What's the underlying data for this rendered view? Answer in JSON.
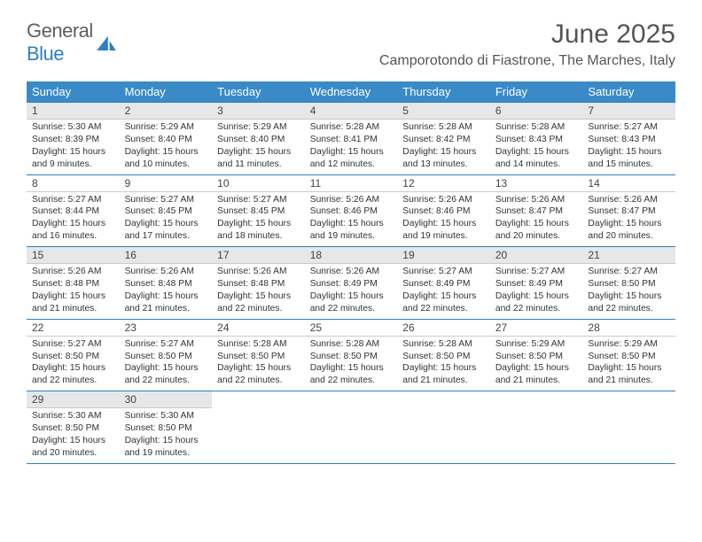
{
  "brand": {
    "word1": "General",
    "word2": "Blue"
  },
  "title": "June 2025",
  "location": "Camporotondo di Fiastrone, The Marches, Italy",
  "colors": {
    "header_bg": "#3a8ac8",
    "border": "#2f7fc1",
    "shade": "#e6e7e8",
    "text": "#333333",
    "logo_gray": "#5e5e5e",
    "logo_blue": "#2f7fc1"
  },
  "weekdays": [
    "Sunday",
    "Monday",
    "Tuesday",
    "Wednesday",
    "Thursday",
    "Friday",
    "Saturday"
  ],
  "weeks": [
    [
      {
        "n": "1",
        "shaded": true,
        "sr": "Sunrise: 5:30 AM",
        "ss": "Sunset: 8:39 PM",
        "d1": "Daylight: 15 hours",
        "d2": "and 9 minutes."
      },
      {
        "n": "2",
        "shaded": true,
        "sr": "Sunrise: 5:29 AM",
        "ss": "Sunset: 8:40 PM",
        "d1": "Daylight: 15 hours",
        "d2": "and 10 minutes."
      },
      {
        "n": "3",
        "shaded": true,
        "sr": "Sunrise: 5:29 AM",
        "ss": "Sunset: 8:40 PM",
        "d1": "Daylight: 15 hours",
        "d2": "and 11 minutes."
      },
      {
        "n": "4",
        "shaded": true,
        "sr": "Sunrise: 5:28 AM",
        "ss": "Sunset: 8:41 PM",
        "d1": "Daylight: 15 hours",
        "d2": "and 12 minutes."
      },
      {
        "n": "5",
        "shaded": true,
        "sr": "Sunrise: 5:28 AM",
        "ss": "Sunset: 8:42 PM",
        "d1": "Daylight: 15 hours",
        "d2": "and 13 minutes."
      },
      {
        "n": "6",
        "shaded": true,
        "sr": "Sunrise: 5:28 AM",
        "ss": "Sunset: 8:43 PM",
        "d1": "Daylight: 15 hours",
        "d2": "and 14 minutes."
      },
      {
        "n": "7",
        "shaded": true,
        "sr": "Sunrise: 5:27 AM",
        "ss": "Sunset: 8:43 PM",
        "d1": "Daylight: 15 hours",
        "d2": "and 15 minutes."
      }
    ],
    [
      {
        "n": "8",
        "shaded": false,
        "sr": "Sunrise: 5:27 AM",
        "ss": "Sunset: 8:44 PM",
        "d1": "Daylight: 15 hours",
        "d2": "and 16 minutes."
      },
      {
        "n": "9",
        "shaded": false,
        "sr": "Sunrise: 5:27 AM",
        "ss": "Sunset: 8:45 PM",
        "d1": "Daylight: 15 hours",
        "d2": "and 17 minutes."
      },
      {
        "n": "10",
        "shaded": false,
        "sr": "Sunrise: 5:27 AM",
        "ss": "Sunset: 8:45 PM",
        "d1": "Daylight: 15 hours",
        "d2": "and 18 minutes."
      },
      {
        "n": "11",
        "shaded": false,
        "sr": "Sunrise: 5:26 AM",
        "ss": "Sunset: 8:46 PM",
        "d1": "Daylight: 15 hours",
        "d2": "and 19 minutes."
      },
      {
        "n": "12",
        "shaded": false,
        "sr": "Sunrise: 5:26 AM",
        "ss": "Sunset: 8:46 PM",
        "d1": "Daylight: 15 hours",
        "d2": "and 19 minutes."
      },
      {
        "n": "13",
        "shaded": false,
        "sr": "Sunrise: 5:26 AM",
        "ss": "Sunset: 8:47 PM",
        "d1": "Daylight: 15 hours",
        "d2": "and 20 minutes."
      },
      {
        "n": "14",
        "shaded": false,
        "sr": "Sunrise: 5:26 AM",
        "ss": "Sunset: 8:47 PM",
        "d1": "Daylight: 15 hours",
        "d2": "and 20 minutes."
      }
    ],
    [
      {
        "n": "15",
        "shaded": true,
        "sr": "Sunrise: 5:26 AM",
        "ss": "Sunset: 8:48 PM",
        "d1": "Daylight: 15 hours",
        "d2": "and 21 minutes."
      },
      {
        "n": "16",
        "shaded": true,
        "sr": "Sunrise: 5:26 AM",
        "ss": "Sunset: 8:48 PM",
        "d1": "Daylight: 15 hours",
        "d2": "and 21 minutes."
      },
      {
        "n": "17",
        "shaded": true,
        "sr": "Sunrise: 5:26 AM",
        "ss": "Sunset: 8:48 PM",
        "d1": "Daylight: 15 hours",
        "d2": "and 22 minutes."
      },
      {
        "n": "18",
        "shaded": true,
        "sr": "Sunrise: 5:26 AM",
        "ss": "Sunset: 8:49 PM",
        "d1": "Daylight: 15 hours",
        "d2": "and 22 minutes."
      },
      {
        "n": "19",
        "shaded": true,
        "sr": "Sunrise: 5:27 AM",
        "ss": "Sunset: 8:49 PM",
        "d1": "Daylight: 15 hours",
        "d2": "and 22 minutes."
      },
      {
        "n": "20",
        "shaded": true,
        "sr": "Sunrise: 5:27 AM",
        "ss": "Sunset: 8:49 PM",
        "d1": "Daylight: 15 hours",
        "d2": "and 22 minutes."
      },
      {
        "n": "21",
        "shaded": true,
        "sr": "Sunrise: 5:27 AM",
        "ss": "Sunset: 8:50 PM",
        "d1": "Daylight: 15 hours",
        "d2": "and 22 minutes."
      }
    ],
    [
      {
        "n": "22",
        "shaded": false,
        "sr": "Sunrise: 5:27 AM",
        "ss": "Sunset: 8:50 PM",
        "d1": "Daylight: 15 hours",
        "d2": "and 22 minutes."
      },
      {
        "n": "23",
        "shaded": false,
        "sr": "Sunrise: 5:27 AM",
        "ss": "Sunset: 8:50 PM",
        "d1": "Daylight: 15 hours",
        "d2": "and 22 minutes."
      },
      {
        "n": "24",
        "shaded": false,
        "sr": "Sunrise: 5:28 AM",
        "ss": "Sunset: 8:50 PM",
        "d1": "Daylight: 15 hours",
        "d2": "and 22 minutes."
      },
      {
        "n": "25",
        "shaded": false,
        "sr": "Sunrise: 5:28 AM",
        "ss": "Sunset: 8:50 PM",
        "d1": "Daylight: 15 hours",
        "d2": "and 22 minutes."
      },
      {
        "n": "26",
        "shaded": false,
        "sr": "Sunrise: 5:28 AM",
        "ss": "Sunset: 8:50 PM",
        "d1": "Daylight: 15 hours",
        "d2": "and 21 minutes."
      },
      {
        "n": "27",
        "shaded": false,
        "sr": "Sunrise: 5:29 AM",
        "ss": "Sunset: 8:50 PM",
        "d1": "Daylight: 15 hours",
        "d2": "and 21 minutes."
      },
      {
        "n": "28",
        "shaded": false,
        "sr": "Sunrise: 5:29 AM",
        "ss": "Sunset: 8:50 PM",
        "d1": "Daylight: 15 hours",
        "d2": "and 21 minutes."
      }
    ],
    [
      {
        "n": "29",
        "shaded": true,
        "sr": "Sunrise: 5:30 AM",
        "ss": "Sunset: 8:50 PM",
        "d1": "Daylight: 15 hours",
        "d2": "and 20 minutes."
      },
      {
        "n": "30",
        "shaded": true,
        "sr": "Sunrise: 5:30 AM",
        "ss": "Sunset: 8:50 PM",
        "d1": "Daylight: 15 hours",
        "d2": "and 19 minutes."
      },
      {
        "empty": true
      },
      {
        "empty": true
      },
      {
        "empty": true
      },
      {
        "empty": true
      },
      {
        "empty": true
      }
    ]
  ]
}
